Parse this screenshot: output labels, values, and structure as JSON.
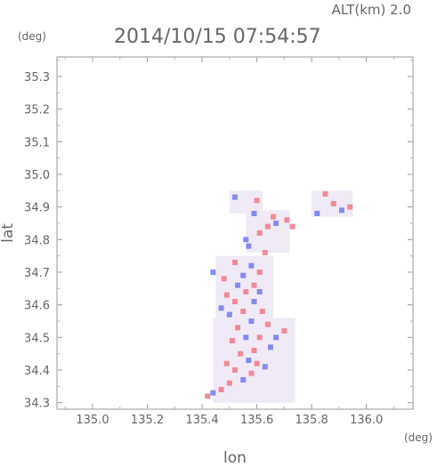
{
  "header": {
    "altitude": "ALT(km) 2.0",
    "timestamp": "2014/10/15 07:54:57",
    "y_unit": "(deg)",
    "x_unit": "(deg)"
  },
  "chart_data": {
    "type": "heatmap",
    "title": "2014/10/15 07:54:57",
    "subtitle": "ALT(km) 2.0",
    "xlabel": "lon",
    "ylabel": "lat",
    "x_unit": "(deg)",
    "y_unit": "(deg)",
    "xlim": [
      134.87,
      136.17
    ],
    "ylim": [
      34.28,
      35.36
    ],
    "xticks": [
      135.0,
      135.2,
      135.4,
      135.6,
      135.8,
      136.0
    ],
    "xtick_labels": [
      "135.0",
      "135.2",
      "135.4",
      "135.6",
      "135.8",
      "136.0"
    ],
    "yticks": [
      34.3,
      34.4,
      34.5,
      34.6,
      34.7,
      34.8,
      34.9,
      35.0,
      35.1,
      35.2,
      35.3
    ],
    "ytick_labels": [
      "34.3",
      "34.4",
      "34.5",
      "34.6",
      "34.7",
      "34.8",
      "34.9",
      "35.0",
      "35.1",
      "35.2",
      "35.3"
    ],
    "grid": false,
    "colors": {
      "positive": "#f07080",
      "negative": "#6a72e8",
      "near_zero": "#efeaf6"
    },
    "cells_note": "sparse patches; value sign + = red, - = blue",
    "cells": [
      [
        135.42,
        34.32,
        1
      ],
      [
        135.44,
        34.33,
        -1
      ],
      [
        135.47,
        34.34,
        1
      ],
      [
        135.5,
        34.36,
        1
      ],
      [
        135.55,
        34.37,
        -1
      ],
      [
        135.58,
        34.39,
        1
      ],
      [
        135.52,
        34.4,
        1
      ],
      [
        135.49,
        34.42,
        1
      ],
      [
        135.57,
        34.43,
        -1
      ],
      [
        135.6,
        34.42,
        1
      ],
      [
        135.63,
        34.41,
        -1
      ],
      [
        135.54,
        34.45,
        1
      ],
      [
        135.59,
        34.46,
        1
      ],
      [
        135.65,
        34.47,
        -1
      ],
      [
        135.51,
        34.49,
        1
      ],
      [
        135.56,
        34.5,
        -1
      ],
      [
        135.61,
        34.5,
        1
      ],
      [
        135.67,
        34.5,
        -1
      ],
      [
        135.7,
        34.52,
        1
      ],
      [
        135.53,
        34.53,
        1
      ],
      [
        135.58,
        34.55,
        -1
      ],
      [
        135.64,
        34.54,
        1
      ],
      [
        135.5,
        34.57,
        -1
      ],
      [
        135.55,
        34.58,
        1
      ],
      [
        135.62,
        34.58,
        1
      ],
      [
        135.47,
        34.59,
        -1
      ],
      [
        135.52,
        34.61,
        1
      ],
      [
        135.59,
        34.61,
        -1
      ],
      [
        135.49,
        34.63,
        1
      ],
      [
        135.56,
        34.64,
        1
      ],
      [
        135.61,
        34.64,
        -1
      ],
      [
        135.53,
        34.66,
        -1
      ],
      [
        135.59,
        34.66,
        1
      ],
      [
        135.48,
        34.68,
        1
      ],
      [
        135.55,
        34.69,
        -1
      ],
      [
        135.61,
        34.7,
        1
      ],
      [
        135.44,
        34.7,
        -1
      ],
      [
        135.58,
        34.72,
        -1
      ],
      [
        135.52,
        34.73,
        1
      ],
      [
        135.56,
        34.8,
        -1
      ],
      [
        135.61,
        34.82,
        1
      ],
      [
        135.64,
        34.84,
        1
      ],
      [
        135.67,
        34.85,
        -1
      ],
      [
        135.71,
        34.86,
        1
      ],
      [
        135.66,
        34.87,
        1
      ],
      [
        135.59,
        34.88,
        -1
      ],
      [
        135.73,
        34.84,
        1
      ],
      [
        135.52,
        34.93,
        -1
      ],
      [
        135.6,
        34.92,
        1
      ],
      [
        135.85,
        34.94,
        1
      ],
      [
        135.88,
        34.91,
        1
      ],
      [
        135.91,
        34.89,
        -1
      ],
      [
        135.94,
        34.9,
        1
      ],
      [
        135.82,
        34.88,
        -1
      ],
      [
        135.57,
        34.78,
        -1
      ],
      [
        135.63,
        34.76,
        1
      ]
    ]
  }
}
